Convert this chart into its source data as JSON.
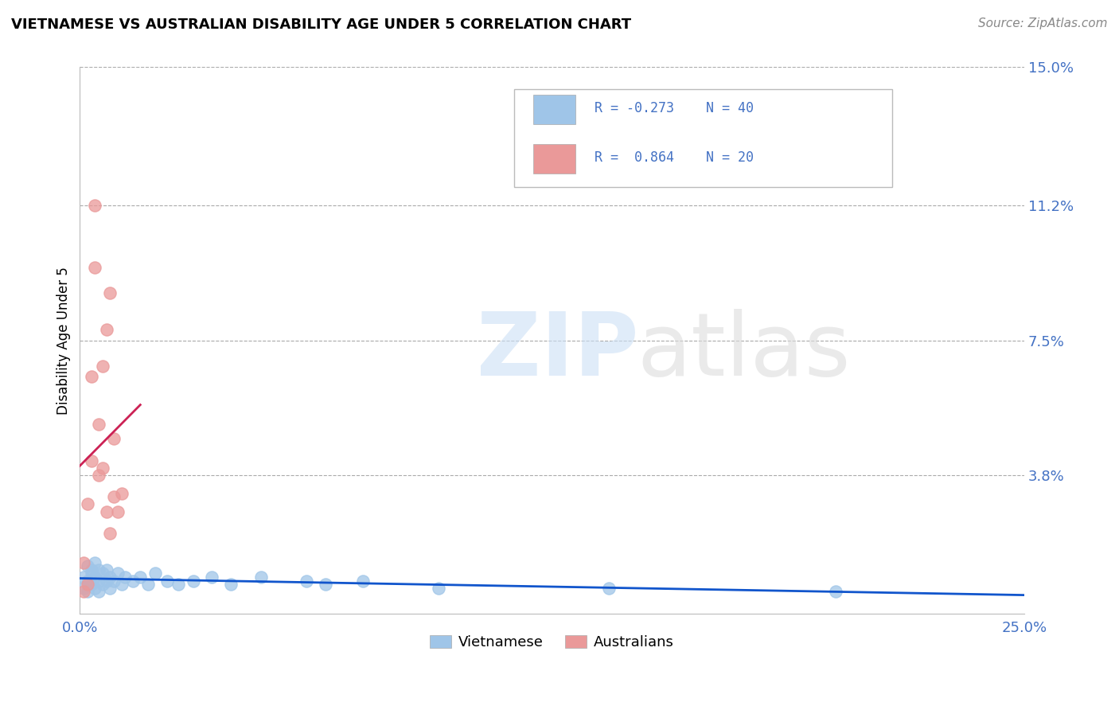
{
  "title": "VIETNAMESE VS AUSTRALIAN DISABILITY AGE UNDER 5 CORRELATION CHART",
  "source": "Source: ZipAtlas.com",
  "ylabel_label": "Disability Age Under 5",
  "xlim": [
    0.0,
    0.25
  ],
  "ylim": [
    0.0,
    0.15
  ],
  "xticks": [
    0.0,
    0.05,
    0.1,
    0.15,
    0.2,
    0.25
  ],
  "xticklabels": [
    "0.0%",
    "",
    "",
    "",
    "",
    "25.0%"
  ],
  "yticks_right": [
    0.0,
    0.038,
    0.075,
    0.112,
    0.15
  ],
  "ytick_right_labels": [
    "",
    "3.8%",
    "7.5%",
    "11.2%",
    "15.0%"
  ],
  "color_vietnamese": "#9fc5e8",
  "color_australians": "#ea9999",
  "trendline_color_vietnamese": "#1155cc",
  "trendline_color_australians": "#cc2255",
  "legend_label1": "Vietnamese",
  "legend_label2": "Australians",
  "background_color": "#ffffff",
  "grid_color": "#aaaaaa",
  "tick_color": "#4472c4",
  "vietnamese_x": [
    0.001,
    0.001,
    0.002,
    0.002,
    0.002,
    0.003,
    0.003,
    0.003,
    0.004,
    0.004,
    0.004,
    0.005,
    0.005,
    0.005,
    0.006,
    0.006,
    0.007,
    0.007,
    0.008,
    0.008,
    0.009,
    0.01,
    0.011,
    0.012,
    0.014,
    0.016,
    0.018,
    0.02,
    0.023,
    0.026,
    0.03,
    0.035,
    0.04,
    0.048,
    0.06,
    0.065,
    0.075,
    0.095,
    0.14,
    0.2
  ],
  "vietnamese_y": [
    0.01,
    0.007,
    0.009,
    0.013,
    0.006,
    0.011,
    0.008,
    0.012,
    0.007,
    0.01,
    0.014,
    0.009,
    0.012,
    0.006,
    0.008,
    0.011,
    0.009,
    0.012,
    0.007,
    0.01,
    0.009,
    0.011,
    0.008,
    0.01,
    0.009,
    0.01,
    0.008,
    0.011,
    0.009,
    0.008,
    0.009,
    0.01,
    0.008,
    0.01,
    0.009,
    0.008,
    0.009,
    0.007,
    0.007,
    0.006
  ],
  "australians_x": [
    0.001,
    0.001,
    0.002,
    0.002,
    0.003,
    0.003,
    0.004,
    0.004,
    0.005,
    0.005,
    0.006,
    0.006,
    0.007,
    0.007,
    0.008,
    0.008,
    0.009,
    0.009,
    0.01,
    0.011
  ],
  "australians_y": [
    0.006,
    0.014,
    0.008,
    0.03,
    0.042,
    0.065,
    0.095,
    0.112,
    0.038,
    0.052,
    0.068,
    0.04,
    0.078,
    0.028,
    0.022,
    0.088,
    0.032,
    0.048,
    0.028,
    0.033
  ]
}
